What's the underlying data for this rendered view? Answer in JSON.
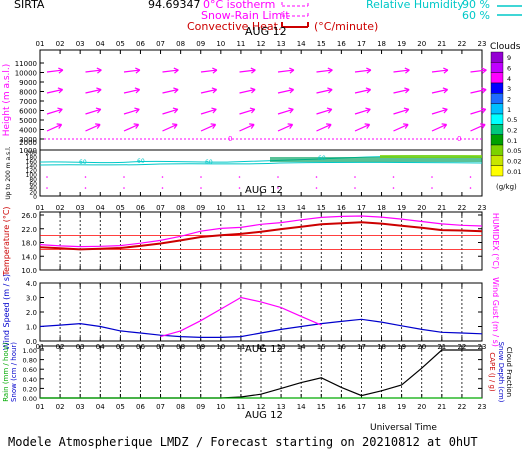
{
  "header": {
    "site": "SIRTA",
    "coords": "94.69347",
    "legend_left": [
      {
        "label": "0°C isotherm",
        "color": "#ff00ff"
      },
      {
        "label": "Snow-Rain Limit",
        "color": "#ff00ff"
      },
      {
        "label": "Convective Heat.",
        "color": "#cc0000"
      }
    ],
    "conv_unit": "(°C/minute)",
    "legend_right": {
      "label": "Relative Humidity",
      "v1": "90 %",
      "v2": "60 %",
      "color": "#00c8c8"
    }
  },
  "hours": [
    "01",
    "02",
    "03",
    "04",
    "05",
    "06",
    "07",
    "08",
    "09",
    "10",
    "11",
    "12",
    "13",
    "14",
    "15",
    "16",
    "17",
    "18",
    "19",
    "20",
    "21",
    "22",
    "23"
  ],
  "date_label": "AUG 12",
  "panel1": {
    "ylabel": "Height (m a.s.l.)",
    "ylabel2": "Up to 200 m a.s.l.",
    "yticks_upper": [
      "11000",
      "10000",
      "9000",
      "8000",
      "7000",
      "6000",
      "5000",
      "4000",
      "3000",
      "2000",
      "1000"
    ],
    "yticks_lower": [
      "200",
      "180",
      "160",
      "140",
      "120",
      "100",
      "80",
      "60",
      "40",
      "20",
      "0"
    ],
    "isotherm_label": "0",
    "rh_label": "60",
    "clouds_title": "Clouds",
    "clouds_scale": [
      "9",
      "6",
      "4",
      "3",
      "2",
      "1",
      "0.5",
      "0.2",
      "0.1",
      "0.05",
      "0.02",
      "0.01"
    ],
    "clouds_colors": [
      "#9400d3",
      "#c000ff",
      "#ff00ff",
      "#0000ff",
      "#1e6cff",
      "#00bfff",
      "#00ffff",
      "#00c87c",
      "#00a000",
      "#7cd200",
      "#c8e600",
      "#ffff00"
    ],
    "clouds_unit": "(g/kg)"
  },
  "panel2": {
    "ylabel": "Temperature (°C)",
    "ylabel_right": "HUMIDEX (°C)",
    "yticks": [
      "26.0",
      "22.0",
      "18.0",
      "14.0",
      "10.0"
    ]
  },
  "panel3": {
    "ylabel": "Wind Speed (m / s)",
    "ylabel_right": "Wind Gust (m / s)",
    "yticks": [
      "4.0",
      "3.0",
      "2.0",
      "1.0",
      "0.0"
    ]
  },
  "panel4": {
    "ylabel1": "Rain (mm / hour)",
    "ylabel2": "Snow (cm / hour)",
    "ylabel_right1": "CAPE (J / g)",
    "ylabel_right2": "Snow Depth (cm)",
    "ylabel_right3": "Cloud Fraction",
    "yticks": [
      "1.00",
      "0.80",
      "0.60",
      "0.40",
      "0.20",
      "0.00"
    ],
    "xaxis_title": "Universal Time"
  },
  "footer": "Modele Atmospherique LMDZ / Forecast starting on 20210812 at 0hUT",
  "chart_data": [
    {
      "type": "line",
      "title": "Temperature / HUMIDEX",
      "x": [
        1,
        2,
        3,
        4,
        5,
        6,
        7,
        8,
        9,
        10,
        11,
        12,
        13,
        14,
        15,
        16,
        17,
        18,
        19,
        20,
        21,
        22,
        23
      ],
      "ylim": [
        10,
        26
      ],
      "series": [
        {
          "name": "Temperature",
          "color": "#cc0000",
          "values": [
            16.6,
            16.3,
            16.0,
            16.2,
            16.4,
            17.0,
            17.7,
            18.6,
            19.6,
            20.1,
            20.5,
            21.1,
            21.9,
            22.6,
            23.3,
            23.6,
            23.9,
            23.5,
            22.9,
            22.3,
            21.6,
            21.5,
            21.3
          ]
        },
        {
          "name": "HUMIDEX",
          "color": "#ff00ff",
          "values": [
            17.4,
            17.0,
            16.8,
            16.9,
            17.1,
            17.8,
            18.6,
            19.8,
            21.3,
            22.1,
            22.4,
            23.3,
            23.8,
            24.6,
            25.3,
            25.6,
            25.7,
            25.4,
            24.8,
            24.1,
            23.4,
            23.0,
            22.8
          ]
        }
      ]
    },
    {
      "type": "line",
      "title": "Wind Speed / Wind Gust",
      "x": [
        1,
        2,
        3,
        4,
        5,
        6,
        7,
        8,
        9,
        10,
        11,
        12,
        13,
        14,
        15,
        16,
        17,
        18,
        19,
        20,
        21,
        22,
        23
      ],
      "ylim": [
        0,
        4
      ],
      "series": [
        {
          "name": "Wind Speed",
          "color": "#0000cc",
          "values": [
            1.0,
            1.1,
            1.2,
            1.0,
            0.7,
            0.55,
            0.4,
            0.3,
            0.25,
            0.25,
            0.3,
            0.55,
            0.8,
            1.0,
            1.2,
            1.35,
            1.5,
            1.3,
            1.05,
            0.8,
            0.6,
            0.55,
            0.5
          ]
        },
        {
          "name": "Wind Gust",
          "color": "#ff00ff",
          "values": [
            null,
            null,
            null,
            null,
            null,
            null,
            0.3,
            0.7,
            1.4,
            2.2,
            3.0,
            2.7,
            2.3,
            1.7,
            1.1,
            null,
            null,
            null,
            null,
            null,
            null,
            null,
            null
          ]
        }
      ]
    },
    {
      "type": "line",
      "title": "Rain / CAPE",
      "x": [
        1,
        2,
        3,
        4,
        5,
        6,
        7,
        8,
        9,
        10,
        11,
        12,
        13,
        14,
        15,
        16,
        17,
        18,
        19,
        20,
        21,
        22,
        23
      ],
      "ylim": [
        0,
        1
      ],
      "series": [
        {
          "name": "CAPE",
          "color": "#000000",
          "values": [
            0,
            0,
            0,
            0,
            0,
            0,
            0,
            0,
            0,
            0,
            0.02,
            0.08,
            0.2,
            0.32,
            0.42,
            0.22,
            0.05,
            0.15,
            0.27,
            0.62,
            1.0,
            1.0,
            1.0
          ]
        },
        {
          "name": "Rain",
          "color": "#00aa00",
          "values": [
            0,
            0,
            0,
            0,
            0,
            0,
            0,
            0,
            0,
            0,
            0,
            0,
            0,
            0,
            0,
            0,
            0,
            0,
            0,
            0,
            0,
            0,
            0
          ]
        }
      ]
    }
  ]
}
